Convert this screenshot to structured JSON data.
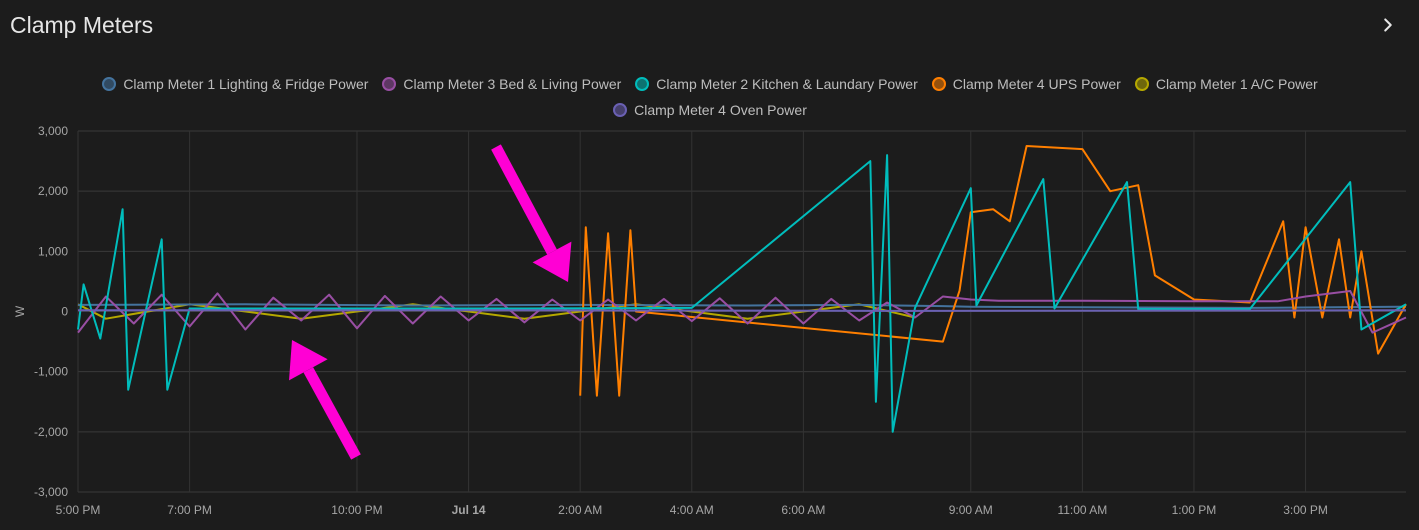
{
  "card": {
    "title": "Clamp Meters"
  },
  "chart_data": {
    "type": "line",
    "ylabel": "W",
    "ylim": [
      -3000,
      3000
    ],
    "yticks": [
      "3,000",
      "2,000",
      "1,000",
      "0",
      "-1,000",
      "-2,000",
      "-3,000"
    ],
    "ytick_values": [
      3000,
      2000,
      1000,
      0,
      -1000,
      -2000,
      -3000
    ],
    "xticks": [
      "5:00 PM",
      "7:00 PM",
      "10:00 PM",
      "Jul 14",
      "2:00 AM",
      "4:00 AM",
      "6:00 AM",
      "9:00 AM",
      "11:00 AM",
      "1:00 PM",
      "3:00 PM"
    ],
    "xtick_hours": [
      17,
      19,
      22,
      24,
      26,
      28,
      30,
      33,
      35,
      37,
      39
    ],
    "x_range_hours": [
      17,
      40.8
    ],
    "grid": true,
    "legend_position": "top",
    "series": [
      {
        "name": "Clamp Meter 1 Lighting & Fridge Power",
        "color": "#44739e",
        "points": [
          [
            17,
            110
          ],
          [
            20,
            120
          ],
          [
            23,
            100
          ],
          [
            26,
            110
          ],
          [
            29,
            100
          ],
          [
            31,
            110
          ],
          [
            32.5,
            90
          ],
          [
            33,
            80
          ],
          [
            35,
            70
          ],
          [
            38,
            60
          ],
          [
            40.8,
            80
          ]
        ]
      },
      {
        "name": "Clamp Meter 3 Bed & Living Power",
        "color": "#984ea3",
        "points": [
          [
            17,
            -350
          ],
          [
            17.5,
            250
          ],
          [
            18,
            -200
          ],
          [
            18.5,
            280
          ],
          [
            19,
            -250
          ],
          [
            19.5,
            300
          ],
          [
            20,
            -300
          ],
          [
            20.5,
            230
          ],
          [
            21,
            -150
          ],
          [
            21.5,
            280
          ],
          [
            22,
            -280
          ],
          [
            22.5,
            260
          ],
          [
            23,
            -200
          ],
          [
            23.5,
            250
          ],
          [
            24,
            -150
          ],
          [
            24.5,
            210
          ],
          [
            25,
            -180
          ],
          [
            25.5,
            200
          ],
          [
            26,
            -150
          ],
          [
            26.5,
            200
          ],
          [
            27,
            -150
          ],
          [
            27.5,
            210
          ],
          [
            28,
            -160
          ],
          [
            28.5,
            220
          ],
          [
            29,
            -200
          ],
          [
            29.5,
            230
          ],
          [
            30,
            -200
          ],
          [
            30.5,
            210
          ],
          [
            31,
            -150
          ],
          [
            31.5,
            150
          ],
          [
            32,
            -100
          ],
          [
            32.5,
            250
          ],
          [
            33,
            200
          ],
          [
            33.5,
            180
          ],
          [
            35,
            180
          ],
          [
            37,
            170
          ],
          [
            38.5,
            170
          ],
          [
            39,
            250
          ],
          [
            39.8,
            340
          ],
          [
            40.2,
            -350
          ],
          [
            40.8,
            -100
          ]
        ]
      },
      {
        "name": "Clamp Meter 2 Kitchen & Laundary Power",
        "color": "#00bdbc",
        "points": [
          [
            17,
            -300
          ],
          [
            17.1,
            450
          ],
          [
            17.4,
            -450
          ],
          [
            17.8,
            1700
          ],
          [
            17.9,
            -1300
          ],
          [
            18.5,
            1200
          ],
          [
            18.6,
            -1300
          ],
          [
            19,
            50
          ],
          [
            25,
            50
          ],
          [
            28,
            60
          ],
          [
            31.2,
            2500
          ],
          [
            31.3,
            -1500
          ],
          [
            31.5,
            2600
          ],
          [
            31.6,
            -2000
          ],
          [
            32,
            60
          ],
          [
            33,
            2050
          ],
          [
            33.1,
            100
          ],
          [
            34.3,
            2200
          ],
          [
            34.5,
            50
          ],
          [
            35.8,
            2150
          ],
          [
            36,
            40
          ],
          [
            38,
            40
          ],
          [
            39.8,
            2150
          ],
          [
            40,
            -300
          ],
          [
            40.8,
            120
          ]
        ]
      },
      {
        "name": "Clamp Meter 4 UPS Power",
        "color": "#ff7f00",
        "points": [
          [
            26,
            -1400
          ],
          [
            26.1,
            1400
          ],
          [
            26.3,
            -1400
          ],
          [
            26.5,
            1300
          ],
          [
            26.7,
            -1400
          ],
          [
            26.9,
            1350
          ],
          [
            27,
            0
          ],
          [
            32.5,
            -500
          ],
          [
            32.8,
            350
          ],
          [
            33,
            1650
          ],
          [
            33.4,
            1700
          ],
          [
            33.7,
            1500
          ],
          [
            34,
            2750
          ],
          [
            35,
            2700
          ],
          [
            35.5,
            2000
          ],
          [
            36,
            2100
          ],
          [
            36.3,
            600
          ],
          [
            37,
            200
          ],
          [
            38,
            150
          ],
          [
            38.6,
            1500
          ],
          [
            38.8,
            -100
          ],
          [
            39,
            1400
          ],
          [
            39.3,
            -100
          ],
          [
            39.6,
            1200
          ],
          [
            39.8,
            -100
          ],
          [
            40,
            1000
          ],
          [
            40.3,
            -700
          ],
          [
            40.8,
            120
          ]
        ]
      },
      {
        "name": "Clamp Meter 1 A/C Power",
        "color": "#b5a800",
        "points": [
          [
            17,
            120
          ],
          [
            17.5,
            -120
          ],
          [
            19,
            120
          ],
          [
            21,
            -120
          ],
          [
            23,
            120
          ],
          [
            25,
            -120
          ],
          [
            27,
            120
          ],
          [
            29,
            -120
          ],
          [
            31,
            120
          ],
          [
            32,
            -100
          ]
        ]
      },
      {
        "name": "Clamp Meter 4 Oven Power",
        "color": "#6a60b3",
        "points": [
          [
            17,
            20
          ],
          [
            25,
            20
          ],
          [
            32,
            10
          ],
          [
            40.8,
            20
          ]
        ]
      }
    ]
  }
}
